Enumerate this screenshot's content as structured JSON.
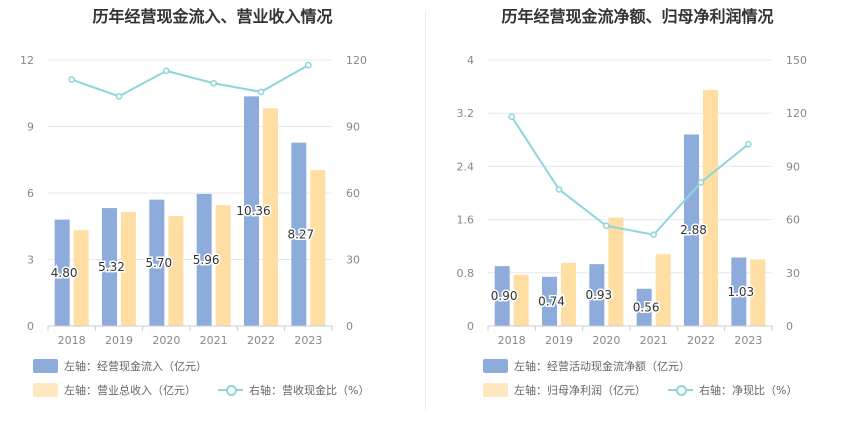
{
  "colors": {
    "bar_primary": "#8eacdb",
    "bar_secondary": "#ffdea4",
    "line": "#8fd6dc",
    "grid": "#e6e8ee",
    "axis_text": "#888888"
  },
  "chart_data": [
    {
      "type": "bar",
      "title": "历年经营现金流入、营业收入情况",
      "categories": [
        "2018",
        "2019",
        "2020",
        "2021",
        "2022",
        "2023"
      ],
      "left_axis": {
        "ticks": [
          "0",
          "3",
          "6",
          "9",
          "12"
        ],
        "ylim": [
          0,
          12
        ]
      },
      "right_axis": {
        "ticks": [
          "0",
          "30",
          "60",
          "90",
          "120"
        ],
        "ylim": [
          0,
          120
        ]
      },
      "series": [
        {
          "name": "左轴：经营现金流入（亿元）",
          "axis": "left",
          "kind": "bar",
          "values": [
            4.8,
            5.32,
            5.7,
            5.96,
            10.36,
            8.27
          ],
          "labels": [
            "4.80",
            "5.32",
            "5.70",
            "5.96",
            "10.36",
            "8.27"
          ]
        },
        {
          "name": "左轴：营业总收入（亿元）",
          "axis": "left",
          "kind": "bar",
          "values": [
            4.32,
            5.14,
            4.96,
            5.45,
            9.82,
            7.03
          ]
        },
        {
          "name": "右轴：营收现金比（%）",
          "axis": "right",
          "kind": "line",
          "values": [
            111.2,
            103.6,
            115.1,
            109.5,
            105.6,
            117.7
          ]
        }
      ],
      "legend_position": "bottom"
    },
    {
      "type": "bar",
      "title": "历年经营现金流净额、归母净利润情况",
      "categories": [
        "2018",
        "2019",
        "2020",
        "2021",
        "2022",
        "2023"
      ],
      "left_axis": {
        "ticks": [
          "0",
          "0.8",
          "1.6",
          "2.4",
          "3.2",
          "4"
        ],
        "ylim": [
          0,
          4
        ]
      },
      "right_axis": {
        "ticks": [
          "0",
          "30",
          "60",
          "90",
          "120",
          "150"
        ],
        "ylim": [
          0,
          150
        ]
      },
      "series": [
        {
          "name": "左轴：经营活动现金流净额（亿元）",
          "axis": "left",
          "kind": "bar",
          "values": [
            0.9,
            0.74,
            0.93,
            0.56,
            2.88,
            1.03
          ],
          "labels": [
            "0.90",
            "0.74",
            "0.93",
            "0.56",
            "2.88",
            "1.03"
          ]
        },
        {
          "name": "左轴：归母净利润（亿元）",
          "axis": "left",
          "kind": "bar",
          "values": [
            0.77,
            0.95,
            1.63,
            1.08,
            3.55,
            1.0
          ]
        },
        {
          "name": "右轴：净现比（%）",
          "axis": "right",
          "kind": "line",
          "values": [
            118,
            77,
            56.5,
            51.5,
            81,
            102.5
          ]
        }
      ],
      "legend_position": "bottom"
    }
  ]
}
